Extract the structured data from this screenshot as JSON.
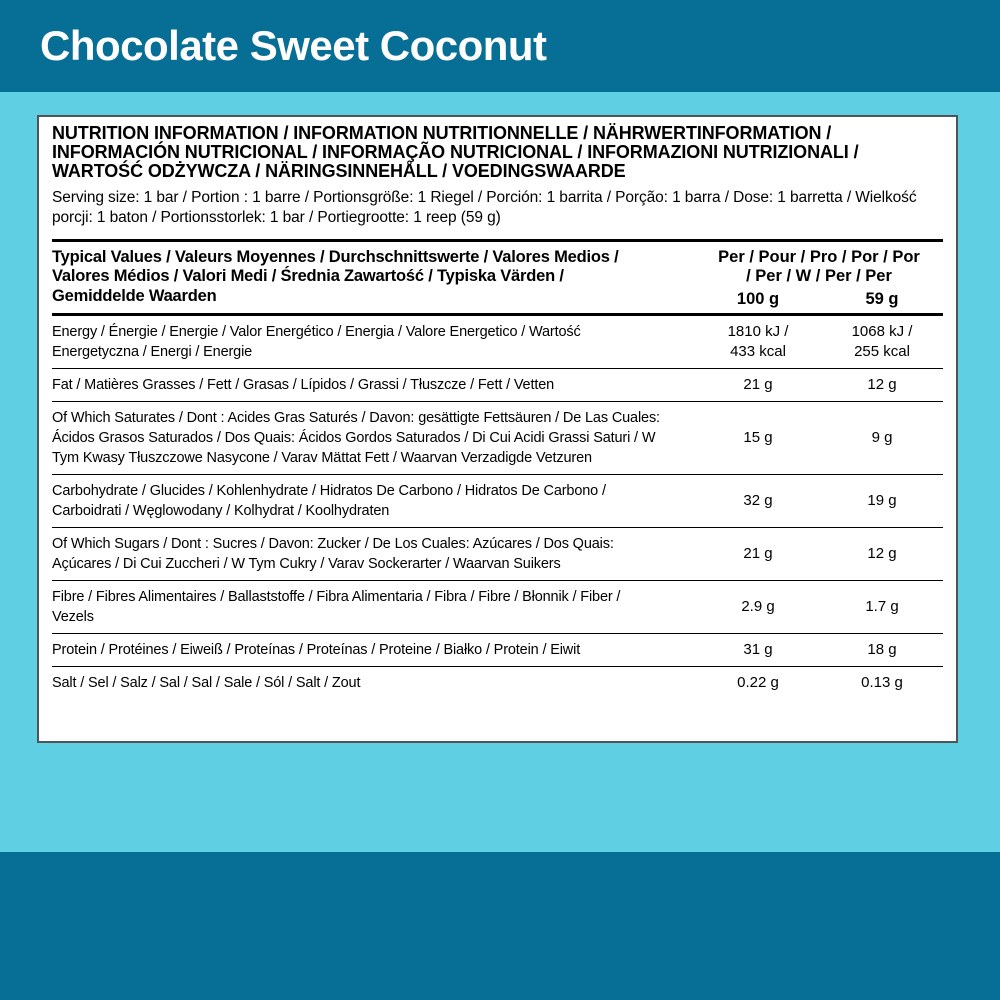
{
  "colors": {
    "band": "#076e96",
    "background": "#5fcfe3",
    "panel": "#ffffff",
    "text": "#000000",
    "title_text": "#ffffff"
  },
  "header": {
    "title": "Chocolate Sweet Coconut"
  },
  "panel": {
    "heading": "NUTRITION INFORMATION / INFORMATION NUTRITIONNELLE / NÄHRWERTINFORMATION / INFORMACIÓN NUTRICIONAL / INFORMAÇÃO NUTRICIONAL / INFORMAZIONI NUTRIZIONALI / WARTOŚĆ ODŻYWCZA / NÄRINGSINNEHÅLL / VOEDINGSWAARDE",
    "serving": "Serving size: 1 bar / Portion : 1 barre / Portionsgröße: 1 Riegel / Porción: 1 barrita / Porção: 1 barra / Dose: 1 barretta / Wielkość porcji: 1 baton / Portionsstorlek: 1 bar / Portiegrootte: 1 reep (59 g)",
    "table": {
      "header_label": "Typical Values / Valeurs Moyennes / Durchschnittswerte / Valores Medios / Valores Médios / Valori Medi / Średnia Zawartość / Typiska Värden / Gemiddelde Waarden",
      "per_header": "Per / Pour / Pro / Por / Por / Per / W / Per / Per",
      "unit_col_1": "100 g",
      "unit_col_2": "59 g",
      "rows": [
        {
          "label": "Energy / Énergie / Energie / Valor Energético / Energia / Valore Energetico / Wartość Energetyczna / Energi / Energie",
          "per100g": "1810 kJ /\n433 kcal",
          "per59g": "1068 kJ /\n255 kcal"
        },
        {
          "label": "Fat / Matières Grasses / Fett / Grasas / Lípidos / Grassi / Tłuszcze / Fett / Vetten",
          "per100g": "21 g",
          "per59g": "12 g"
        },
        {
          "label": "Of Which Saturates / Dont : Acides Gras Saturés / Davon: gesättigte Fettsäuren / De Las Cuales: Ácidos Grasos Saturados / Dos Quais: Ácidos Gordos Saturados / Di Cui Acidi Grassi Saturi / W Tym Kwasy Tłuszczowe Nasycone / Varav Mättat Fett / Waarvan Verzadigde Vetzuren",
          "per100g": "15 g",
          "per59g": "9 g"
        },
        {
          "label": "Carbohydrate / Glucides / Kohlenhydrate / Hidratos De Carbono / Hidratos De Carbono / Carboidrati / Węglowodany / Kolhydrat / Koolhydraten",
          "per100g": "32 g",
          "per59g": "19 g"
        },
        {
          "label": "Of Which Sugars / Dont : Sucres / Davon: Zucker / De Los Cuales: Azúcares / Dos Quais: Açúcares / Di Cui Zuccheri / W Tym Cukry / Varav Sockerarter / Waarvan Suikers",
          "per100g": "21 g",
          "per59g": "12 g"
        },
        {
          "label": "Fibre / Fibres Alimentaires / Ballaststoffe / Fibra Alimentaria / Fibra / Fibre / Błonnik / Fiber / Vezels",
          "per100g": "2.9 g",
          "per59g": "1.7 g"
        },
        {
          "label": "Protein / Protéines / Eiweiß / Proteínas / Proteínas / Proteine / Białko / Protein / Eiwit",
          "per100g": "31 g",
          "per59g": "18 g"
        },
        {
          "label": "Salt / Sel / Salz / Sal / Sal / Sale / Sól / Salt / Zout",
          "per100g": "0.22 g",
          "per59g": "0.13 g"
        }
      ]
    }
  }
}
